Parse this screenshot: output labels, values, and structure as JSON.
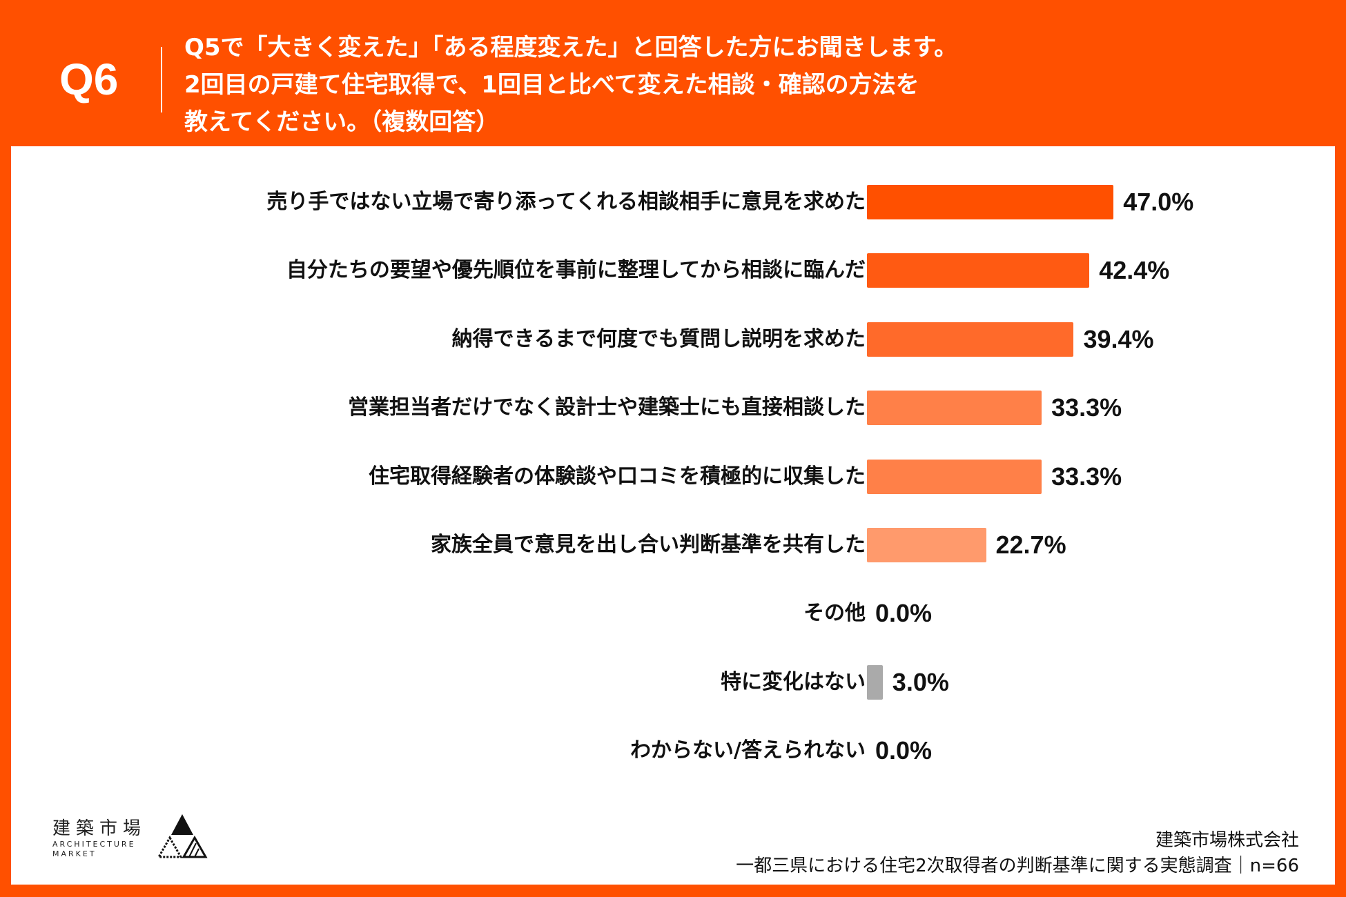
{
  "header": {
    "q_number": "Q6",
    "lines": [
      "Q5で「大きく変えた」「ある程度変えた」と回答した方にお聞きします。",
      "2回目の戸建て住宅取得で、1回目と比べて変えた相談・確認の方法を",
      "教えてください。（複数回答）"
    ]
  },
  "chart_data": {
    "type": "bar",
    "orientation": "horizontal",
    "title": "2回目の戸建て住宅取得で、1回目と比べて変えた相談・確認の方法（複数回答）",
    "categories": [
      "売り手ではない立場で寄り添ってくれる相談相手に意見を求めた",
      "自分たちの要望や優先順位を事前に整理してから相談に臨んだ",
      "納得できるまで何度でも質問し説明を求めた",
      "営業担当者だけでなく設計士や建築士にも直接相談した",
      "住宅取得経験者の体験談や口コミを積極的に収集した",
      "家族全員で意見を出し合い判断基準を共有した",
      "その他",
      "特に変化はない",
      "わからない/答えられない"
    ],
    "values": [
      47.0,
      42.4,
      39.4,
      33.3,
      33.3,
      22.7,
      0.0,
      3.0,
      0.0
    ],
    "labels": [
      "47.0%",
      "42.4%",
      "39.4%",
      "33.3%",
      "33.3%",
      "22.7%",
      "0.0%",
      "3.0%",
      "0.0%"
    ],
    "colors": [
      "#FF5000",
      "#FF5A12",
      "#FF6A2A",
      "#FF8048",
      "#FF8048",
      "#FF9A6C",
      "#FF9A6C",
      "#AAAAAA",
      "#AAAAAA"
    ],
    "unit": "%",
    "xlim": [
      0,
      100
    ]
  },
  "footer": {
    "logo_jp": "建築市場",
    "logo_en1": "ARCHITECTURE",
    "logo_en2": "MARKET",
    "company": "建築市場株式会社",
    "survey": "一都三県における住宅2次取得者の判断基準に関する実態調査｜n=66"
  }
}
